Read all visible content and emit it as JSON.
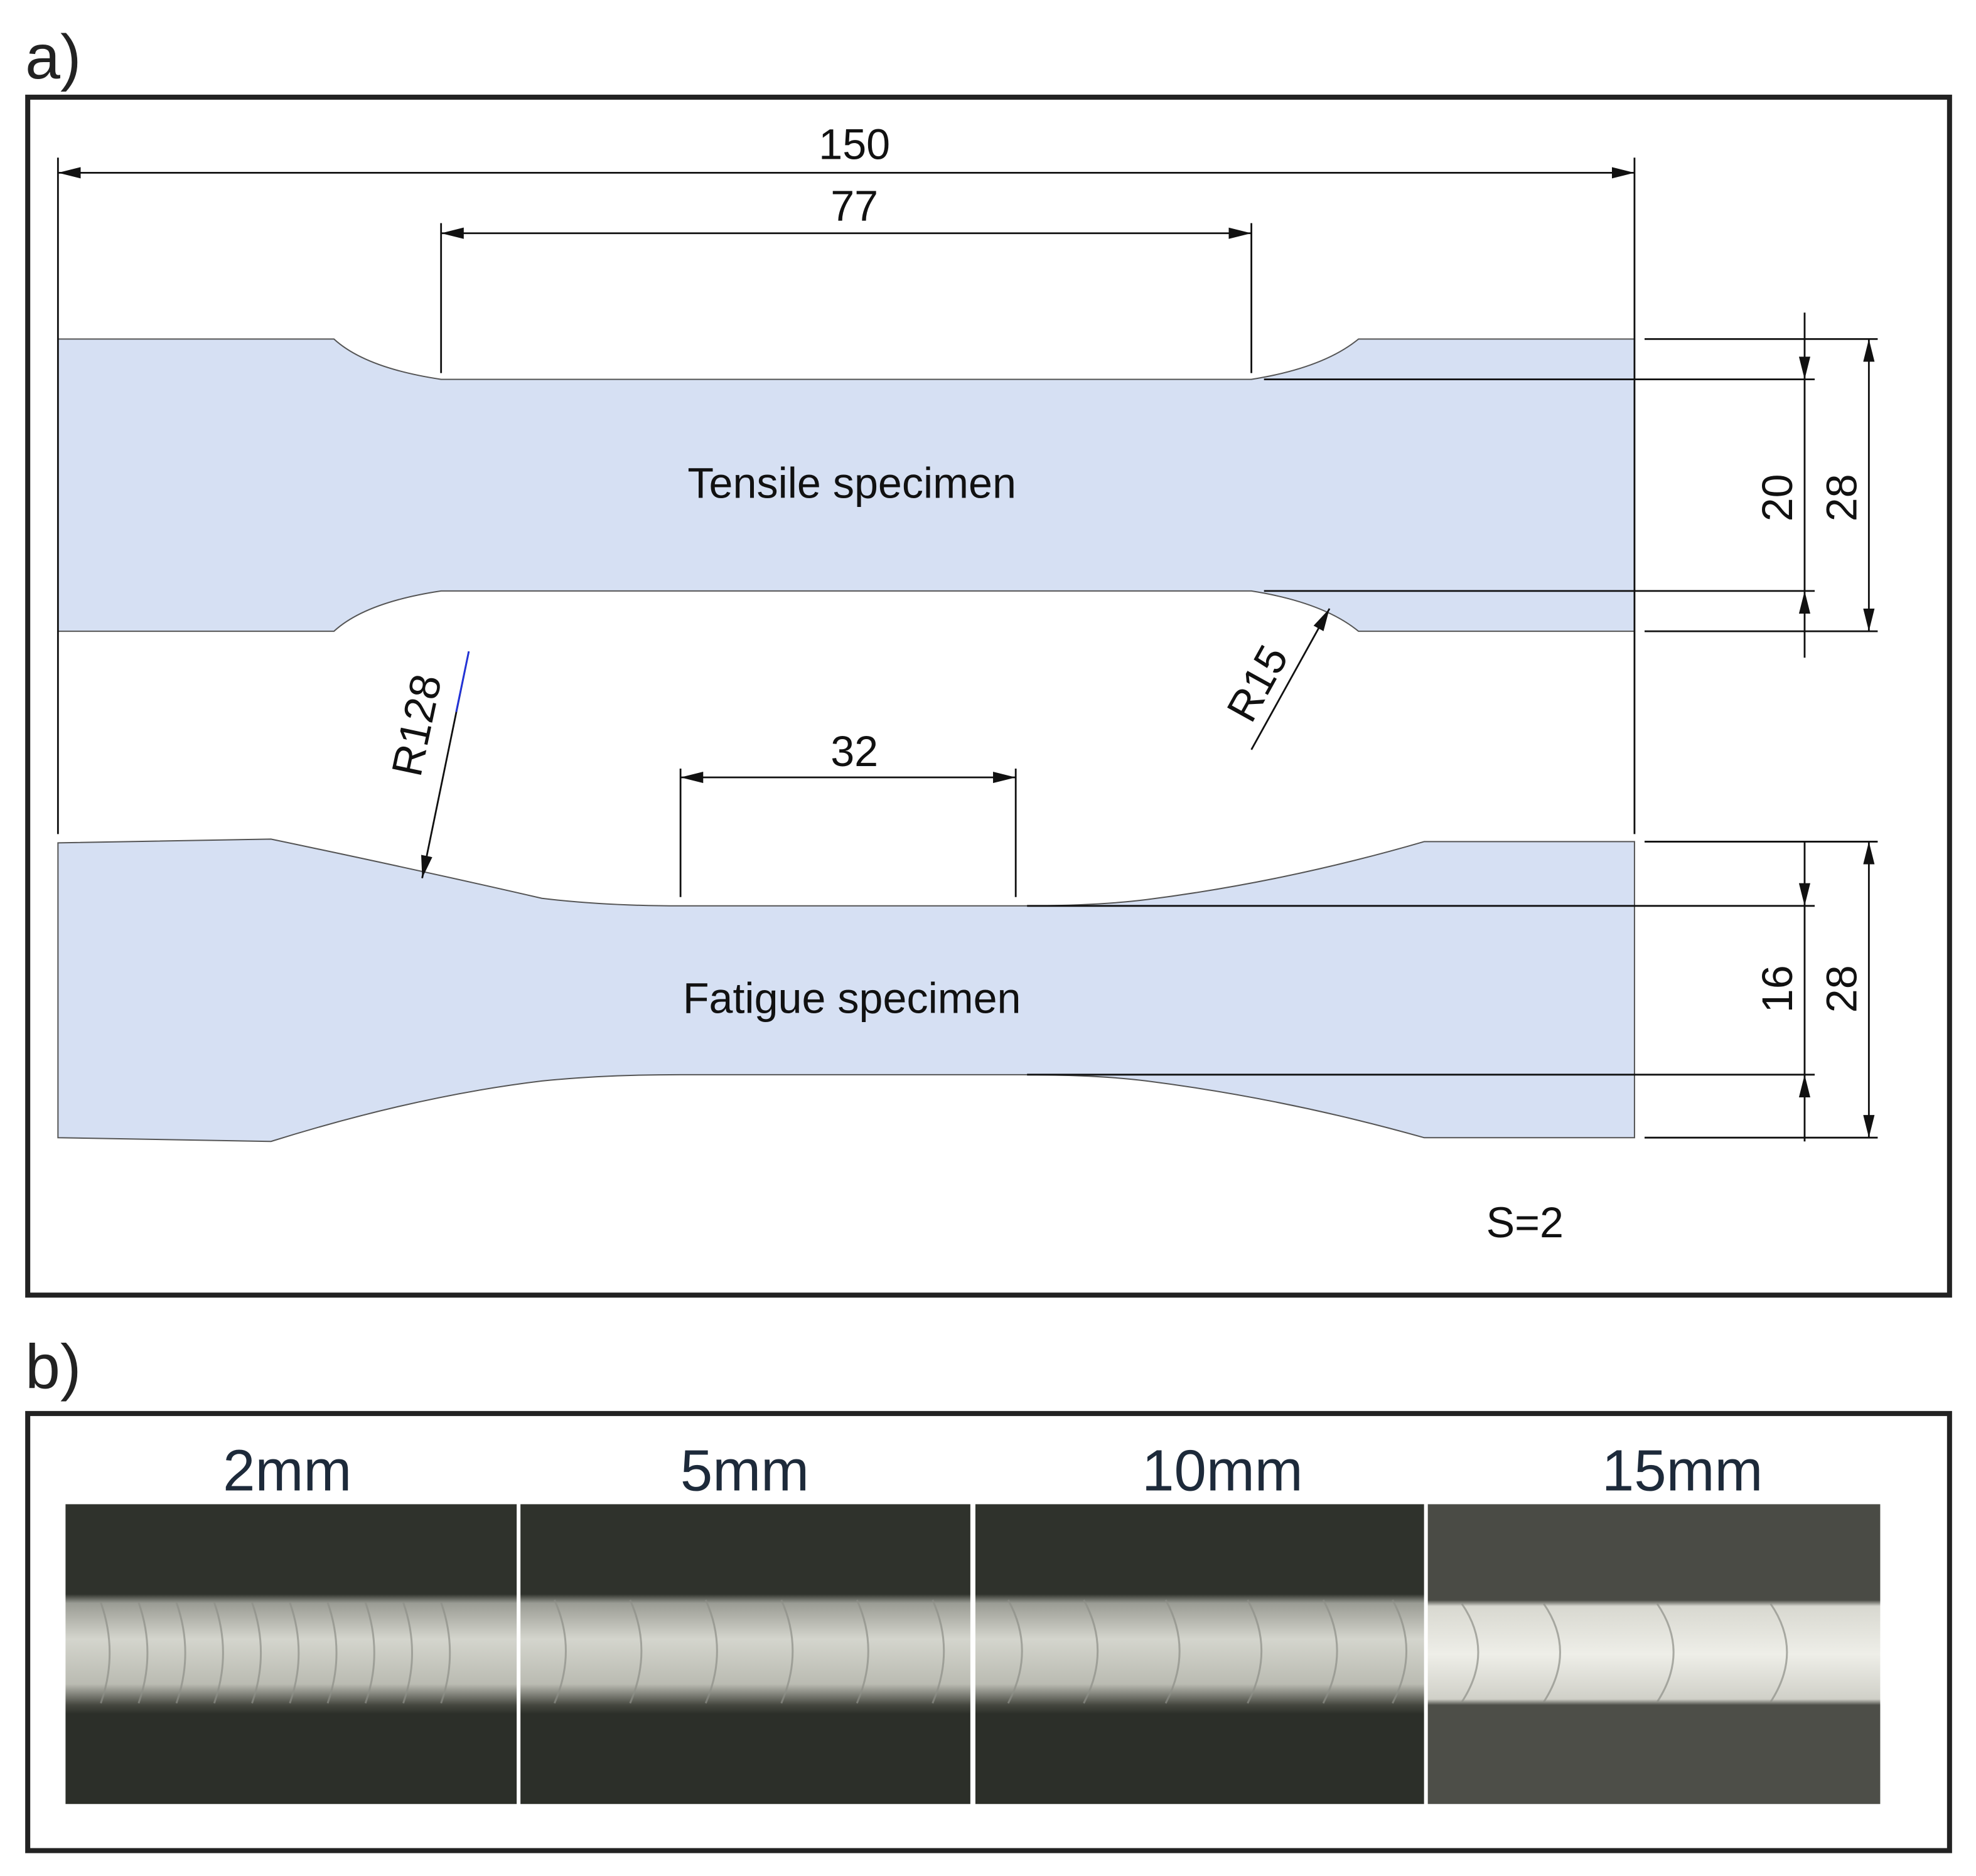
{
  "panel_a": {
    "label": "a)",
    "dimensions": {
      "overall_length": "150",
      "tensile_gauge_length": "77",
      "tensile_gauge_width": "20",
      "tensile_grip_width": "28",
      "fatigue_radius": "R128",
      "tensile_radius": "R15",
      "fatigue_gauge_length": "32",
      "fatigue_gauge_width": "16",
      "fatigue_grip_width": "28"
    },
    "specimens": {
      "tensile": "Tensile specimen",
      "fatigue": "Fatigue specimen"
    },
    "scale": "S=2"
  },
  "panel_b": {
    "label": "b)",
    "photos": [
      "2mm",
      "5mm",
      "10mm",
      "15mm"
    ]
  }
}
